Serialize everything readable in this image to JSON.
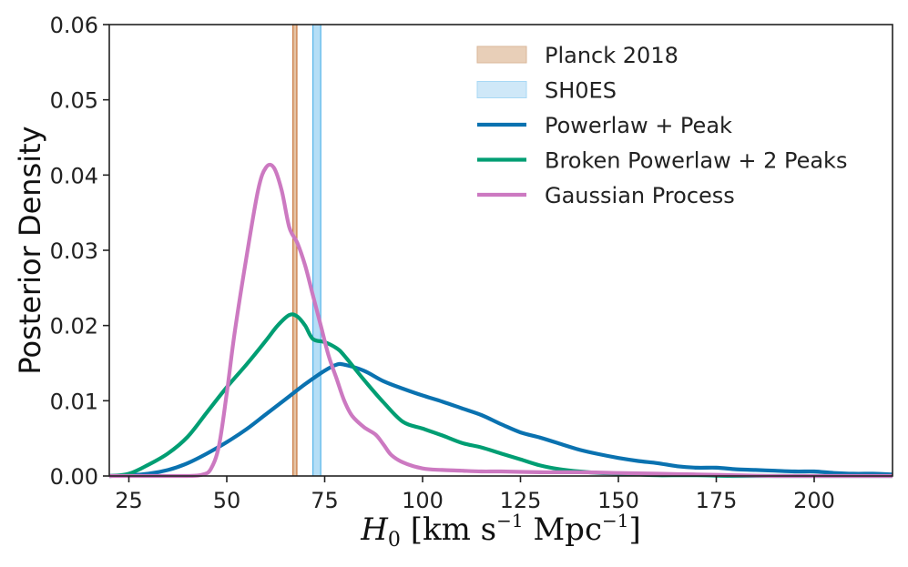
{
  "chart_data": {
    "type": "line",
    "title": "",
    "xlabel": {
      "symbol": "H",
      "sub": "0",
      "units_prefix": "[km s",
      "exp1": "−1",
      "units_mid": " Mpc",
      "exp2": "−1",
      "units_suffix": "]"
    },
    "ylabel": "Posterior Density",
    "xlim": [
      20,
      220
    ],
    "ylim": [
      0,
      0.06
    ],
    "xticks": [
      25,
      50,
      75,
      100,
      125,
      150,
      175,
      200
    ],
    "xtick_labels": [
      "25",
      "50",
      "75",
      "100",
      "125",
      "150",
      "175",
      "200"
    ],
    "yticks": [
      0,
      0.01,
      0.02,
      0.03,
      0.04,
      0.05,
      0.06
    ],
    "ytick_labels": [
      "0.00",
      "0.01",
      "0.02",
      "0.03",
      "0.04",
      "0.05",
      "0.06"
    ],
    "grid": false,
    "legend_position": "top-right",
    "bands": [
      {
        "name": "Planck 2018",
        "center": 67.4,
        "lo": 66.9,
        "hi": 67.9,
        "color": "#e0b794",
        "edge": "#c8773f"
      },
      {
        "name": "SH0ES",
        "center": 73.0,
        "lo": 72.0,
        "hi": 74.0,
        "color": "#a8d8f5",
        "edge": "#56b4e9"
      }
    ],
    "series": [
      {
        "name": "Powerlaw + Peak",
        "color": "#0a72b0",
        "x": [
          20,
          25,
          30,
          35,
          40,
          45,
          50,
          55,
          60,
          65,
          70,
          75,
          78,
          80,
          85,
          90,
          95,
          100,
          105,
          110,
          115,
          120,
          125,
          130,
          135,
          140,
          145,
          150,
          155,
          160,
          165,
          170,
          175,
          180,
          185,
          190,
          195,
          200,
          205,
          210,
          215,
          220
        ],
        "y": [
          0,
          0.0001,
          0.0003,
          0.0008,
          0.0017,
          0.003,
          0.0045,
          0.0062,
          0.0082,
          0.0102,
          0.0122,
          0.014,
          0.0148,
          0.0148,
          0.014,
          0.0126,
          0.0116,
          0.0107,
          0.0099,
          0.009,
          0.0081,
          0.0069,
          0.0058,
          0.0051,
          0.0043,
          0.0035,
          0.0029,
          0.0024,
          0.002,
          0.0017,
          0.0013,
          0.0011,
          0.0011,
          0.0009,
          0.0008,
          0.0007,
          0.0006,
          0.0006,
          0.0004,
          0.0003,
          0.0003,
          0.0002
        ]
      },
      {
        "name": "Broken Powerlaw + 2 Peaks",
        "color": "#009e73",
        "x": [
          20,
          25,
          30,
          35,
          40,
          45,
          50,
          55,
          60,
          63,
          66,
          68,
          70,
          72,
          75,
          78,
          80,
          85,
          90,
          95,
          100,
          105,
          110,
          115,
          120,
          125,
          130,
          135,
          140,
          145,
          150,
          155,
          160,
          170,
          180,
          190,
          200,
          210,
          220
        ],
        "y": [
          0,
          0.0003,
          0.0015,
          0.003,
          0.0052,
          0.0085,
          0.0118,
          0.0148,
          0.018,
          0.02,
          0.0214,
          0.0212,
          0.02,
          0.0182,
          0.0178,
          0.017,
          0.016,
          0.0128,
          0.0098,
          0.0072,
          0.0063,
          0.0054,
          0.0044,
          0.0038,
          0.003,
          0.0022,
          0.0014,
          0.0009,
          0.0006,
          0.0004,
          0.0003,
          0.0002,
          0.0001,
          0.0001,
          0,
          0,
          0,
          0,
          0
        ]
      },
      {
        "name": "Gaussian Process",
        "color": "#cc79c1",
        "x": [
          20,
          30,
          40,
          44,
          46,
          48,
          50,
          52,
          55,
          58,
          60,
          62,
          64,
          66,
          68,
          70,
          72,
          74,
          76,
          78,
          80,
          82,
          85,
          88,
          90,
          92,
          95,
          100,
          105,
          110,
          115,
          120,
          130,
          140,
          150,
          160,
          170,
          180,
          190,
          200,
          210,
          220
        ],
        "y": [
          0,
          0,
          0,
          0.0002,
          0.001,
          0.004,
          0.011,
          0.019,
          0.029,
          0.038,
          0.041,
          0.041,
          0.038,
          0.033,
          0.031,
          0.028,
          0.024,
          0.02,
          0.016,
          0.013,
          0.01,
          0.008,
          0.0065,
          0.0055,
          0.0042,
          0.0028,
          0.0018,
          0.001,
          0.0008,
          0.0007,
          0.0006,
          0.0006,
          0.0005,
          0.0005,
          0.0004,
          0.0003,
          0.0002,
          0.0001,
          0,
          0,
          0,
          0
        ]
      }
    ],
    "legend": [
      {
        "label": "Planck 2018",
        "kind": "patch",
        "color": "#e8cfb8",
        "edge": "#dab79a"
      },
      {
        "label": "SH0ES",
        "kind": "patch",
        "color": "#cfe8f8",
        "edge": "#a8d8f5"
      },
      {
        "label": "Powerlaw + Peak",
        "kind": "line",
        "color": "#0a72b0"
      },
      {
        "label": "Broken Powerlaw + 2 Peaks",
        "kind": "line",
        "color": "#009e73"
      },
      {
        "label": "Gaussian Process",
        "kind": "line",
        "color": "#cc79c1"
      }
    ]
  }
}
